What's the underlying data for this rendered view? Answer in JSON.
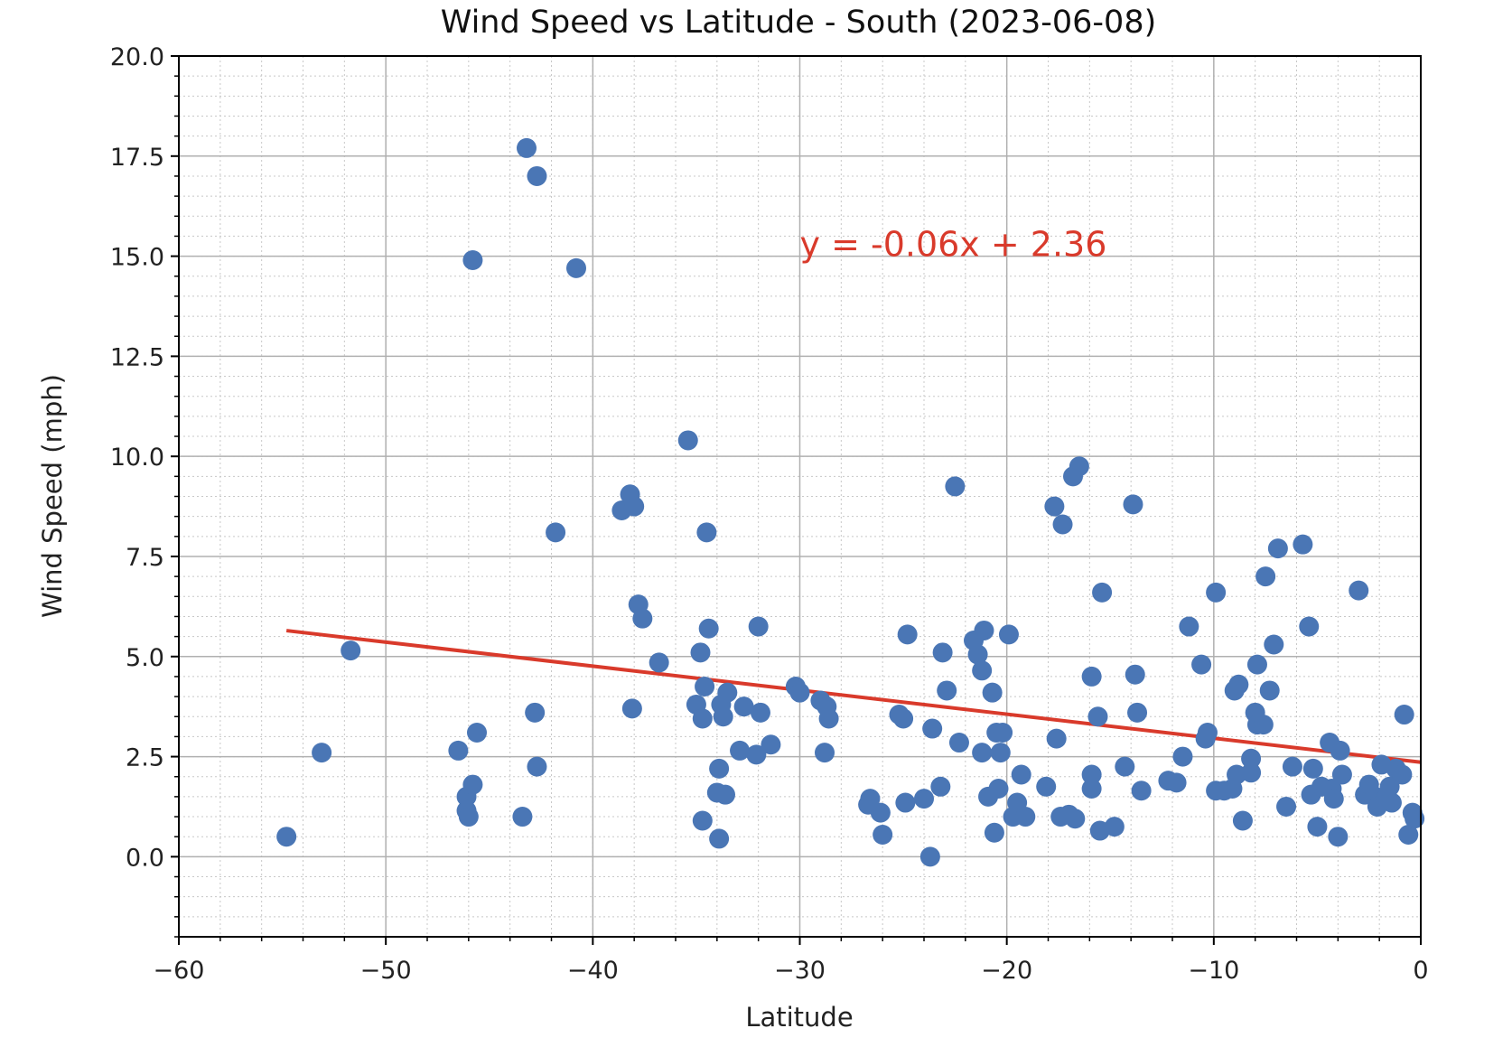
{
  "chart_data": {
    "type": "scatter",
    "title": "Wind Speed vs Latitude - South (2023-06-08)",
    "xlabel": "Latitude",
    "ylabel": "Wind Speed (mph)",
    "xlim": [
      -60,
      0
    ],
    "ylim": [
      -2,
      20
    ],
    "x_ticks": [
      -60,
      -50,
      -40,
      -30,
      -20,
      -10,
      0
    ],
    "x_tick_labels": [
      "−60",
      "−50",
      "−40",
      "−30",
      "−20",
      "−10",
      "0"
    ],
    "y_ticks": [
      0,
      2.5,
      5,
      7.5,
      10,
      12.5,
      15,
      17.5,
      20
    ],
    "y_tick_labels": [
      "0.0",
      "2.5",
      "5.0",
      "7.5",
      "10.0",
      "12.5",
      "15.0",
      "17.5",
      "20.0"
    ],
    "grid": true,
    "minor_grid": true,
    "colors": {
      "points": "#4a76b5",
      "regression": "#d93a2b",
      "grid_major": "#b0b0b0",
      "grid_minor": "#c8c8c8"
    },
    "regression": {
      "slope": -0.06,
      "intercept": 2.36,
      "x_range": [
        -54.8,
        0
      ],
      "equation": "y = -0.06x + 2.36",
      "annotation_at": [
        -30,
        15
      ]
    },
    "points": [
      [
        -54.8,
        0.5
      ],
      [
        -53.1,
        2.6
      ],
      [
        -51.7,
        5.15
      ],
      [
        -46.5,
        2.65
      ],
      [
        -46.1,
        1.5
      ],
      [
        -46.1,
        1.15
      ],
      [
        -46.0,
        1.0
      ],
      [
        -45.8,
        1.8
      ],
      [
        -45.6,
        3.1
      ],
      [
        -45.8,
        14.9
      ],
      [
        -43.4,
        1.0
      ],
      [
        -43.2,
        17.7
      ],
      [
        -42.8,
        3.6
      ],
      [
        -42.7,
        2.25
      ],
      [
        -42.7,
        17.0
      ],
      [
        -41.8,
        8.1
      ],
      [
        -40.8,
        14.7
      ],
      [
        -38.6,
        8.65
      ],
      [
        -38.2,
        9.05
      ],
      [
        -38.0,
        8.75
      ],
      [
        -38.1,
        3.7
      ],
      [
        -37.8,
        6.3
      ],
      [
        -37.6,
        5.95
      ],
      [
        -36.8,
        4.85
      ],
      [
        -35.4,
        10.4
      ],
      [
        -35.0,
        3.8
      ],
      [
        -34.8,
        5.1
      ],
      [
        -34.7,
        3.45
      ],
      [
        -34.7,
        0.9
      ],
      [
        -34.6,
        4.25
      ],
      [
        -34.5,
        8.1
      ],
      [
        -34.4,
        5.7
      ],
      [
        -34.0,
        1.6
      ],
      [
        -33.9,
        2.2
      ],
      [
        -33.9,
        0.45
      ],
      [
        -33.8,
        3.8
      ],
      [
        -33.7,
        3.5
      ],
      [
        -33.6,
        1.55
      ],
      [
        -33.5,
        4.1
      ],
      [
        -32.9,
        2.65
      ],
      [
        -32.7,
        3.75
      ],
      [
        -32.1,
        2.55
      ],
      [
        -32.0,
        5.75
      ],
      [
        -31.9,
        3.6
      ],
      [
        -31.4,
        2.8
      ],
      [
        -30.2,
        4.25
      ],
      [
        -30.0,
        4.1
      ],
      [
        -29.0,
        3.9
      ],
      [
        -28.8,
        2.6
      ],
      [
        -28.7,
        3.75
      ],
      [
        -28.6,
        3.45
      ],
      [
        -26.6,
        1.45
      ],
      [
        -26.7,
        1.3
      ],
      [
        -26.1,
        1.1
      ],
      [
        -26.0,
        0.55
      ],
      [
        -25.2,
        3.55
      ],
      [
        -25.0,
        3.45
      ],
      [
        -24.9,
        1.35
      ],
      [
        -24.8,
        5.55
      ],
      [
        -24.0,
        1.45
      ],
      [
        -23.7,
        0.0
      ],
      [
        -23.6,
        3.2
      ],
      [
        -23.2,
        1.75
      ],
      [
        -23.1,
        5.1
      ],
      [
        -22.9,
        4.15
      ],
      [
        -22.5,
        9.25
      ],
      [
        -22.3,
        2.85
      ],
      [
        -21.6,
        5.4
      ],
      [
        -21.4,
        5.05
      ],
      [
        -21.2,
        2.6
      ],
      [
        -21.2,
        4.65
      ],
      [
        -21.1,
        5.65
      ],
      [
        -20.9,
        1.5
      ],
      [
        -20.7,
        4.1
      ],
      [
        -20.6,
        0.6
      ],
      [
        -20.5,
        3.1
      ],
      [
        -20.3,
        2.6
      ],
      [
        -20.4,
        1.7
      ],
      [
        -20.2,
        3.1
      ],
      [
        -19.9,
        5.55
      ],
      [
        -19.7,
        1.0
      ],
      [
        -19.5,
        1.35
      ],
      [
        -19.3,
        2.05
      ],
      [
        -19.1,
        1.0
      ],
      [
        -18.1,
        1.75
      ],
      [
        -17.7,
        8.75
      ],
      [
        -17.6,
        2.95
      ],
      [
        -17.4,
        1.0
      ],
      [
        -17.3,
        8.3
      ],
      [
        -17.0,
        1.05
      ],
      [
        -16.8,
        9.5
      ],
      [
        -16.7,
        0.95
      ],
      [
        -16.5,
        9.75
      ],
      [
        -15.9,
        4.5
      ],
      [
        -15.9,
        2.05
      ],
      [
        -15.9,
        1.7
      ],
      [
        -15.6,
        3.5
      ],
      [
        -15.5,
        0.65
      ],
      [
        -15.4,
        6.6
      ],
      [
        -14.8,
        0.75
      ],
      [
        -14.3,
        2.25
      ],
      [
        -13.9,
        8.8
      ],
      [
        -13.8,
        4.55
      ],
      [
        -13.7,
        3.6
      ],
      [
        -13.5,
        1.65
      ],
      [
        -12.2,
        1.9
      ],
      [
        -11.8,
        1.85
      ],
      [
        -11.5,
        2.5
      ],
      [
        -11.2,
        5.75
      ],
      [
        -10.6,
        4.8
      ],
      [
        -10.4,
        2.95
      ],
      [
        -10.3,
        3.1
      ],
      [
        -9.9,
        6.6
      ],
      [
        -9.9,
        1.65
      ],
      [
        -9.5,
        1.65
      ],
      [
        -9.1,
        1.7
      ],
      [
        -9.0,
        4.15
      ],
      [
        -8.9,
        2.05
      ],
      [
        -8.8,
        4.3
      ],
      [
        -8.6,
        0.9
      ],
      [
        -8.2,
        2.45
      ],
      [
        -8.2,
        2.1
      ],
      [
        -8.0,
        3.6
      ],
      [
        -7.9,
        4.8
      ],
      [
        -7.9,
        3.3
      ],
      [
        -7.6,
        3.3
      ],
      [
        -7.5,
        7.0
      ],
      [
        -7.3,
        4.15
      ],
      [
        -7.1,
        5.3
      ],
      [
        -6.9,
        7.7
      ],
      [
        -6.5,
        1.25
      ],
      [
        -6.2,
        2.25
      ],
      [
        -5.7,
        7.8
      ],
      [
        -5.4,
        5.75
      ],
      [
        -5.3,
        1.55
      ],
      [
        -5.2,
        2.2
      ],
      [
        -5.0,
        0.75
      ],
      [
        -4.8,
        1.75
      ],
      [
        -4.4,
        2.85
      ],
      [
        -4.3,
        1.7
      ],
      [
        -4.2,
        1.45
      ],
      [
        -4.0,
        0.5
      ],
      [
        -3.9,
        2.65
      ],
      [
        -3.8,
        2.05
      ],
      [
        -3.0,
        6.65
      ],
      [
        -2.7,
        1.55
      ],
      [
        -2.5,
        1.8
      ],
      [
        -2.2,
        1.5
      ],
      [
        -2.1,
        1.25
      ],
      [
        -1.9,
        2.3
      ],
      [
        -1.7,
        1.45
      ],
      [
        -1.5,
        1.75
      ],
      [
        -1.4,
        1.35
      ],
      [
        -1.2,
        2.2
      ],
      [
        -0.9,
        2.05
      ],
      [
        -0.8,
        3.55
      ],
      [
        -0.6,
        0.55
      ],
      [
        -0.4,
        1.1
      ],
      [
        -0.3,
        0.95
      ]
    ]
  }
}
